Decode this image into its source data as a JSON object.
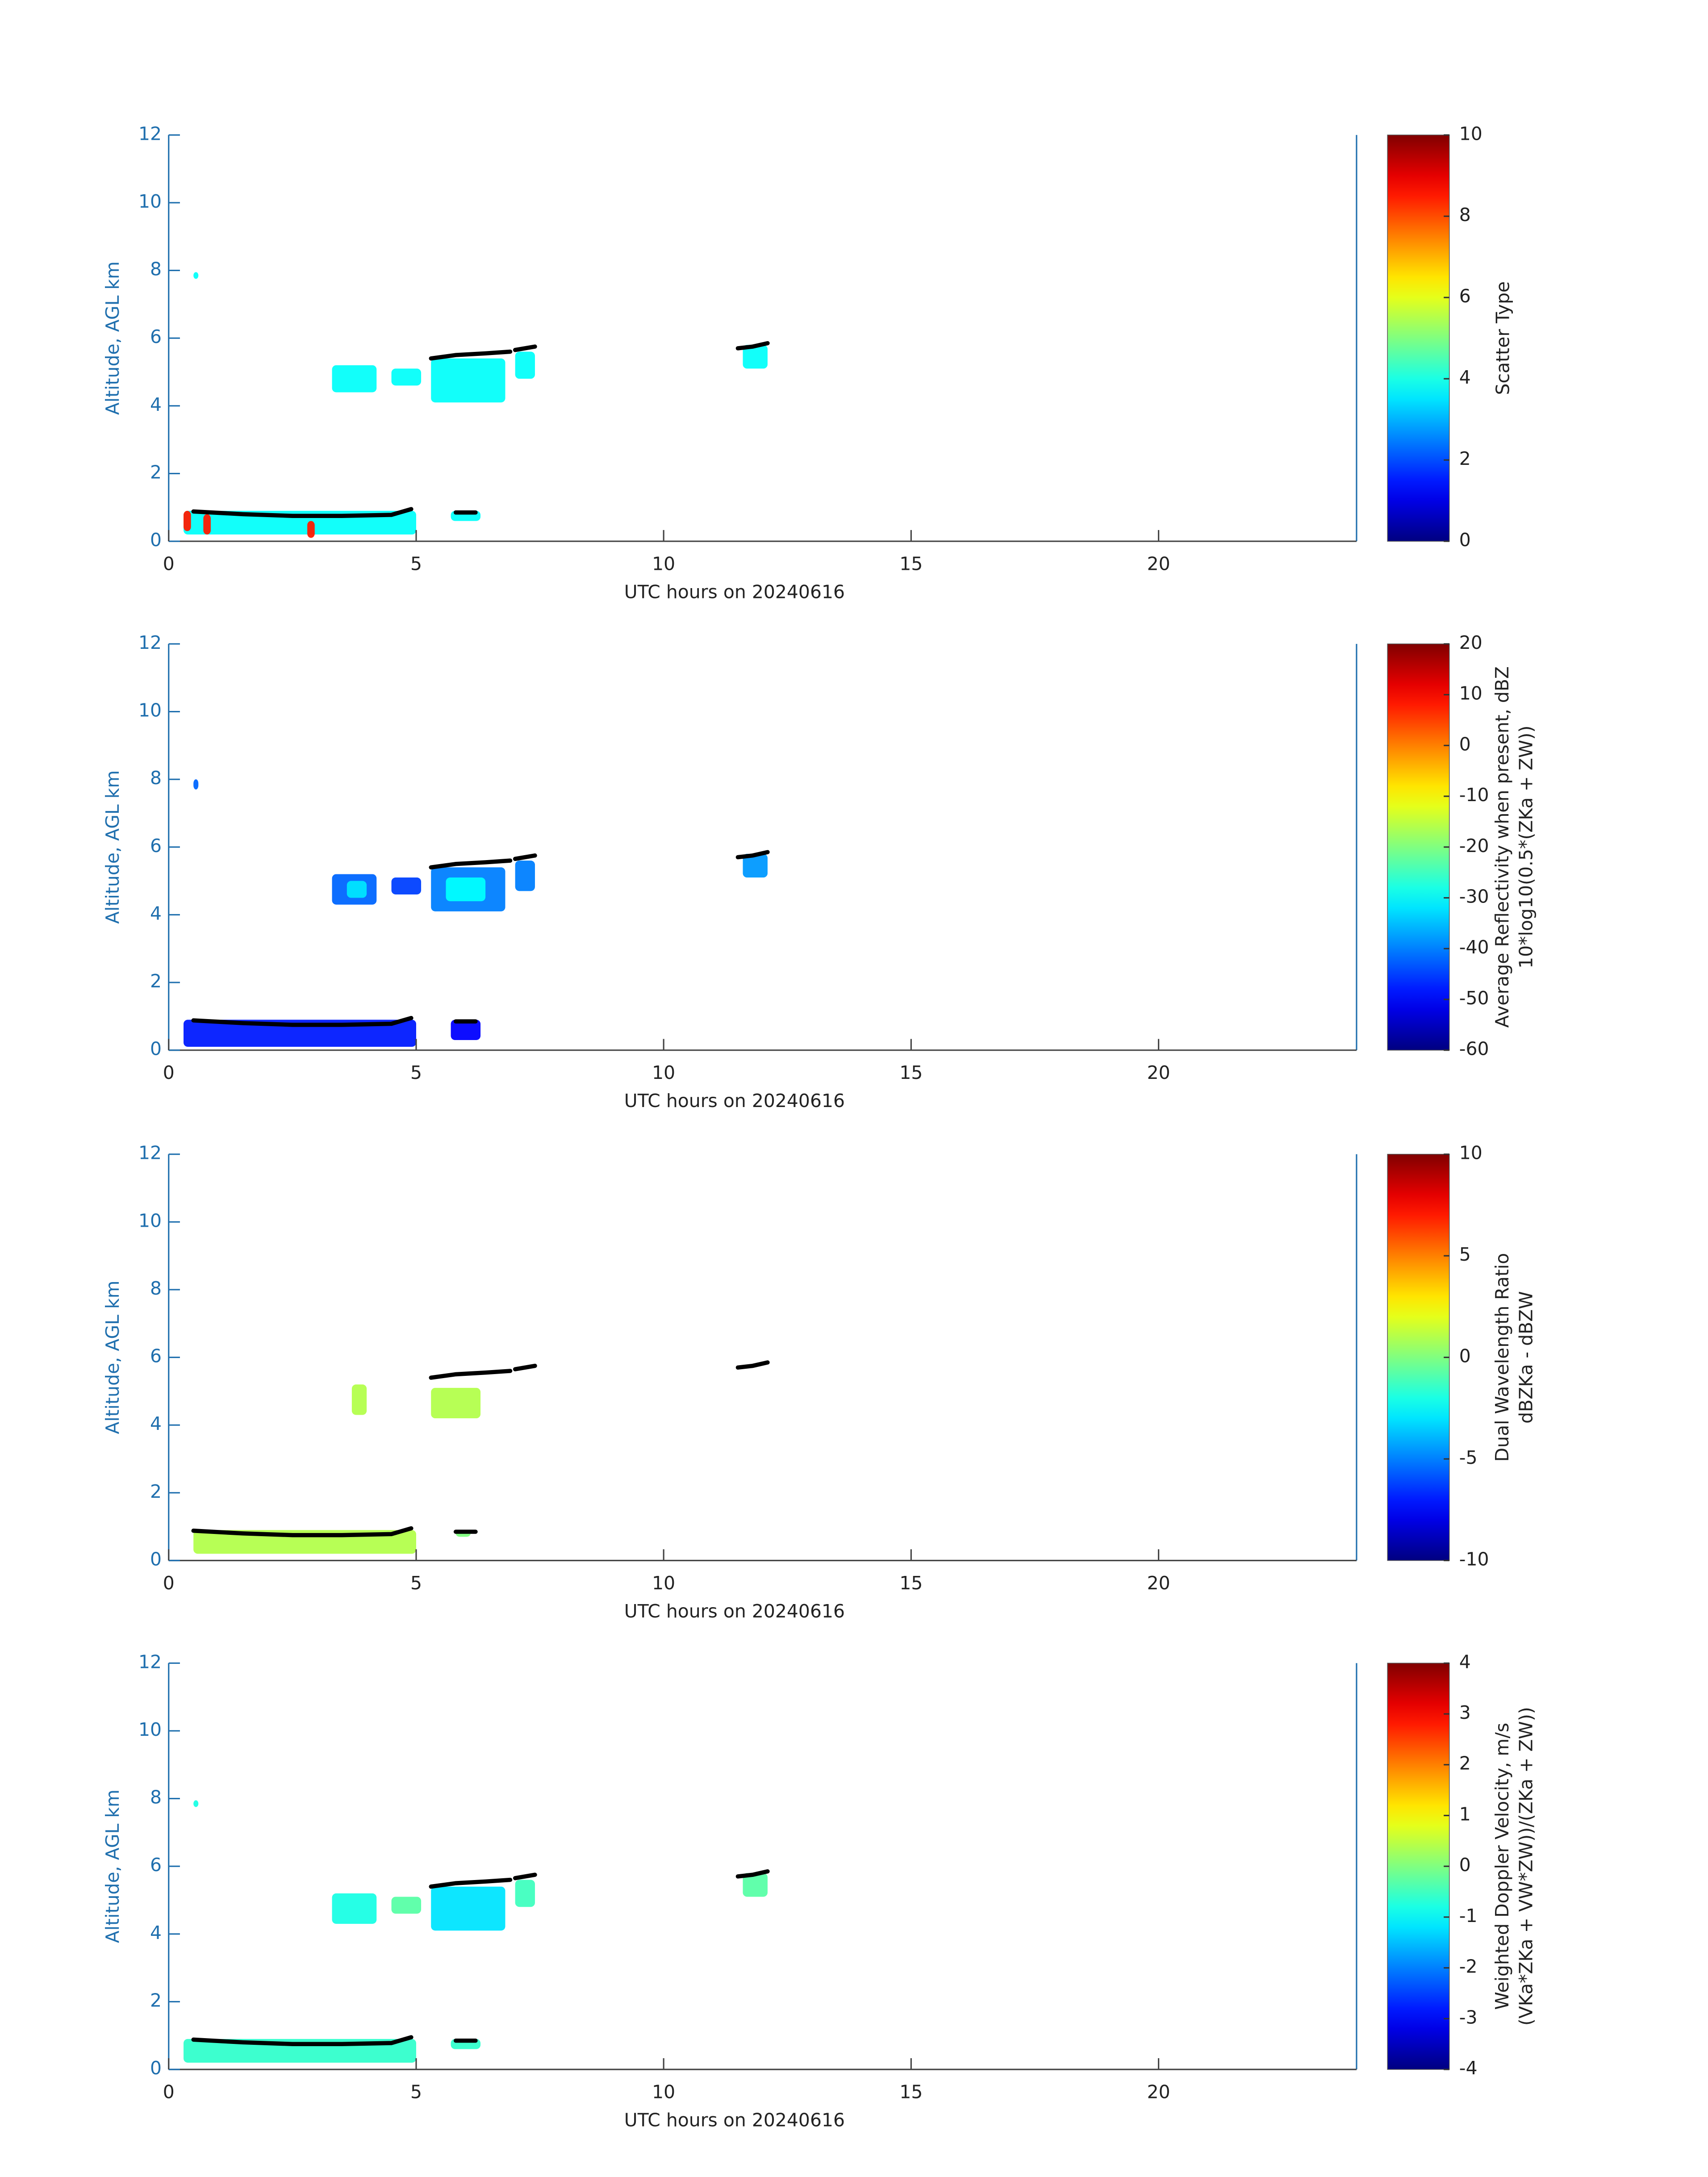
{
  "chart_data": [
    {
      "type": "heatmap",
      "xlabel": "UTC hours on 20240616",
      "ylabel": "Altitude, AGL km",
      "colorbar_label": [
        "Scatter Type"
      ],
      "colormap": "jet",
      "xlim": [
        0,
        24
      ],
      "xticks": [
        0,
        5,
        10,
        15,
        20
      ],
      "ylim": [
        0,
        12
      ],
      "yticks": [
        0,
        2,
        4,
        6,
        8,
        10,
        12
      ],
      "clim": [
        0,
        10
      ],
      "cticks": [
        0,
        2,
        4,
        6,
        8,
        10
      ],
      "regions": [
        {
          "x": [
            0.5,
            0.6
          ],
          "y": [
            7.75,
            7.95
          ],
          "value": 3.8
        },
        {
          "x": [
            3.3,
            4.2
          ],
          "y": [
            4.4,
            5.2
          ],
          "value": 3.8
        },
        {
          "x": [
            4.5,
            5.1
          ],
          "y": [
            4.6,
            5.1
          ],
          "value": 3.8
        },
        {
          "x": [
            5.3,
            6.8
          ],
          "y": [
            4.1,
            5.4
          ],
          "value": 3.8
        },
        {
          "x": [
            7.0,
            7.4
          ],
          "y": [
            4.8,
            5.6
          ],
          "value": 3.8
        },
        {
          "x": [
            11.6,
            12.1
          ],
          "y": [
            5.1,
            5.8
          ],
          "value": 3.8
        },
        {
          "x": [
            0.3,
            5.0
          ],
          "y": [
            0.2,
            0.9
          ],
          "value": 3.8
        },
        {
          "x": [
            5.7,
            6.3
          ],
          "y": [
            0.6,
            0.9
          ],
          "value": 3.8
        },
        {
          "x": [
            0.3,
            0.45
          ],
          "y": [
            0.3,
            0.9
          ],
          "value": 8.5
        },
        {
          "x": [
            0.7,
            0.85
          ],
          "y": [
            0.2,
            0.8
          ],
          "value": 8.5
        },
        {
          "x": [
            2.8,
            2.95
          ],
          "y": [
            0.1,
            0.6
          ],
          "value": 8.5
        }
      ],
      "tops_x": [
        5.3,
        5.8,
        6.4,
        6.9,
        null,
        7.0,
        7.4,
        null,
        11.5,
        11.8,
        12.1,
        null,
        0.5,
        1.5,
        2.5,
        3.5,
        4.5,
        4.9,
        null,
        5.8,
        6.2
      ],
      "tops_y": [
        5.4,
        5.5,
        5.55,
        5.6,
        null,
        5.65,
        5.75,
        null,
        5.7,
        5.75,
        5.85,
        null,
        0.88,
        0.8,
        0.75,
        0.75,
        0.78,
        0.95,
        null,
        0.85,
        0.85
      ]
    },
    {
      "type": "heatmap",
      "xlabel": "UTC hours on 20240616",
      "ylabel": "Altitude, AGL km",
      "colorbar_label": [
        "Average Reflectivity when present, dBZ",
        "10*log10(0.5*(ZKa + ZW))"
      ],
      "colormap": "jet",
      "xlim": [
        0,
        24
      ],
      "xticks": [
        0,
        5,
        10,
        15,
        20
      ],
      "ylim": [
        0,
        12
      ],
      "yticks": [
        0,
        2,
        4,
        6,
        8,
        10,
        12
      ],
      "clim": [
        -60,
        20
      ],
      "cticks": [
        -60,
        -50,
        -40,
        -30,
        -20,
        -10,
        0,
        10,
        20
      ],
      "regions": [
        {
          "x": [
            0.5,
            0.6
          ],
          "y": [
            7.7,
            8.0
          ],
          "value": -42
        },
        {
          "x": [
            3.3,
            4.2
          ],
          "y": [
            4.3,
            5.2
          ],
          "value": -42
        },
        {
          "x": [
            3.6,
            4.0
          ],
          "y": [
            4.5,
            5.0
          ],
          "value": -32
        },
        {
          "x": [
            4.5,
            5.1
          ],
          "y": [
            4.6,
            5.1
          ],
          "value": -45
        },
        {
          "x": [
            5.3,
            6.8
          ],
          "y": [
            4.1,
            5.4
          ],
          "value": -40
        },
        {
          "x": [
            5.6,
            6.4
          ],
          "y": [
            4.4,
            5.1
          ],
          "value": -30
        },
        {
          "x": [
            7.0,
            7.4
          ],
          "y": [
            4.7,
            5.6
          ],
          "value": -40
        },
        {
          "x": [
            11.6,
            12.1
          ],
          "y": [
            5.1,
            5.8
          ],
          "value": -38
        },
        {
          "x": [
            0.3,
            5.0
          ],
          "y": [
            0.1,
            0.9
          ],
          "value": -48
        },
        {
          "x": [
            5.7,
            6.3
          ],
          "y": [
            0.3,
            0.9
          ],
          "value": -50
        }
      ],
      "tops_x": [
        5.3,
        5.8,
        6.4,
        6.9,
        null,
        7.0,
        7.4,
        null,
        11.5,
        11.8,
        12.1,
        null,
        0.5,
        1.5,
        2.5,
        3.5,
        4.5,
        4.9,
        null,
        5.8,
        6.2
      ],
      "tops_y": [
        5.4,
        5.5,
        5.55,
        5.6,
        null,
        5.65,
        5.75,
        null,
        5.7,
        5.75,
        5.85,
        null,
        0.88,
        0.8,
        0.75,
        0.75,
        0.78,
        0.95,
        null,
        0.85,
        0.85
      ]
    },
    {
      "type": "heatmap",
      "xlabel": "UTC hours on 20240616",
      "ylabel": "Altitude, AGL km",
      "colorbar_label": [
        "Dual Wavelength Ratio",
        "dBZKa - dBZW"
      ],
      "colormap": "jet",
      "xlim": [
        0,
        24
      ],
      "xticks": [
        0,
        5,
        10,
        15,
        20
      ],
      "ylim": [
        0,
        12
      ],
      "yticks": [
        0,
        2,
        4,
        6,
        8,
        10,
        12
      ],
      "clim": [
        -10,
        10
      ],
      "cticks": [
        -10,
        -5,
        0,
        5,
        10
      ],
      "regions": [
        {
          "x": [
            3.7,
            4.0
          ],
          "y": [
            4.3,
            5.2
          ],
          "value": 1
        },
        {
          "x": [
            5.3,
            6.3
          ],
          "y": [
            4.2,
            5.1
          ],
          "value": 1
        },
        {
          "x": [
            0.5,
            5.0
          ],
          "y": [
            0.2,
            0.9
          ],
          "value": 1
        },
        {
          "x": [
            5.8,
            6.1
          ],
          "y": [
            0.7,
            0.9
          ],
          "value": 0
        }
      ],
      "tops_x": [
        5.3,
        5.8,
        6.4,
        6.9,
        null,
        7.0,
        7.4,
        null,
        11.5,
        11.8,
        12.1,
        null,
        0.5,
        1.5,
        2.5,
        3.5,
        4.5,
        4.9,
        null,
        5.8,
        6.2
      ],
      "tops_y": [
        5.4,
        5.5,
        5.55,
        5.6,
        null,
        5.65,
        5.75,
        null,
        5.7,
        5.75,
        5.85,
        null,
        0.88,
        0.8,
        0.75,
        0.75,
        0.78,
        0.95,
        null,
        0.85,
        0.85
      ]
    },
    {
      "type": "heatmap",
      "xlabel": "UTC hours on 20240616",
      "ylabel": "Altitude, AGL km",
      "colorbar_label": [
        "Weighted Doppler Velocity, m/s",
        "(VKa*ZKa + VW*ZW))/(ZKa + ZW))"
      ],
      "colormap": "jet",
      "xlim": [
        0,
        24
      ],
      "xticks": [
        0,
        5,
        10,
        15,
        20
      ],
      "ylim": [
        0,
        12
      ],
      "yticks": [
        0,
        2,
        4,
        6,
        8,
        10,
        12
      ],
      "clim": [
        -4,
        4
      ],
      "cticks": [
        -4,
        -3,
        -2,
        -1,
        0,
        1,
        2,
        3,
        4
      ],
      "regions": [
        {
          "x": [
            0.5,
            0.6
          ],
          "y": [
            7.75,
            7.95
          ],
          "value": -0.8
        },
        {
          "x": [
            3.3,
            4.2
          ],
          "y": [
            4.3,
            5.2
          ],
          "value": -0.8
        },
        {
          "x": [
            4.5,
            5.1
          ],
          "y": [
            4.6,
            5.1
          ],
          "value": -0.3
        },
        {
          "x": [
            5.3,
            6.8
          ],
          "y": [
            4.1,
            5.4
          ],
          "value": -1.2
        },
        {
          "x": [
            7.0,
            7.4
          ],
          "y": [
            4.8,
            5.6
          ],
          "value": -0.5
        },
        {
          "x": [
            11.6,
            12.1
          ],
          "y": [
            5.1,
            5.8
          ],
          "value": -0.3
        },
        {
          "x": [
            0.3,
            5.0
          ],
          "y": [
            0.2,
            0.9
          ],
          "value": -0.6
        },
        {
          "x": [
            5.7,
            6.3
          ],
          "y": [
            0.6,
            0.9
          ],
          "value": -0.6
        }
      ],
      "tops_x": [
        5.3,
        5.8,
        6.4,
        6.9,
        null,
        7.0,
        7.4,
        null,
        11.5,
        11.8,
        12.1,
        null,
        0.5,
        1.5,
        2.5,
        3.5,
        4.5,
        4.9,
        null,
        5.8,
        6.2
      ],
      "tops_y": [
        5.4,
        5.5,
        5.55,
        5.6,
        null,
        5.65,
        5.75,
        null,
        5.7,
        5.75,
        5.85,
        null,
        0.88,
        0.8,
        0.75,
        0.75,
        0.78,
        0.95,
        null,
        0.85,
        0.85
      ]
    }
  ]
}
